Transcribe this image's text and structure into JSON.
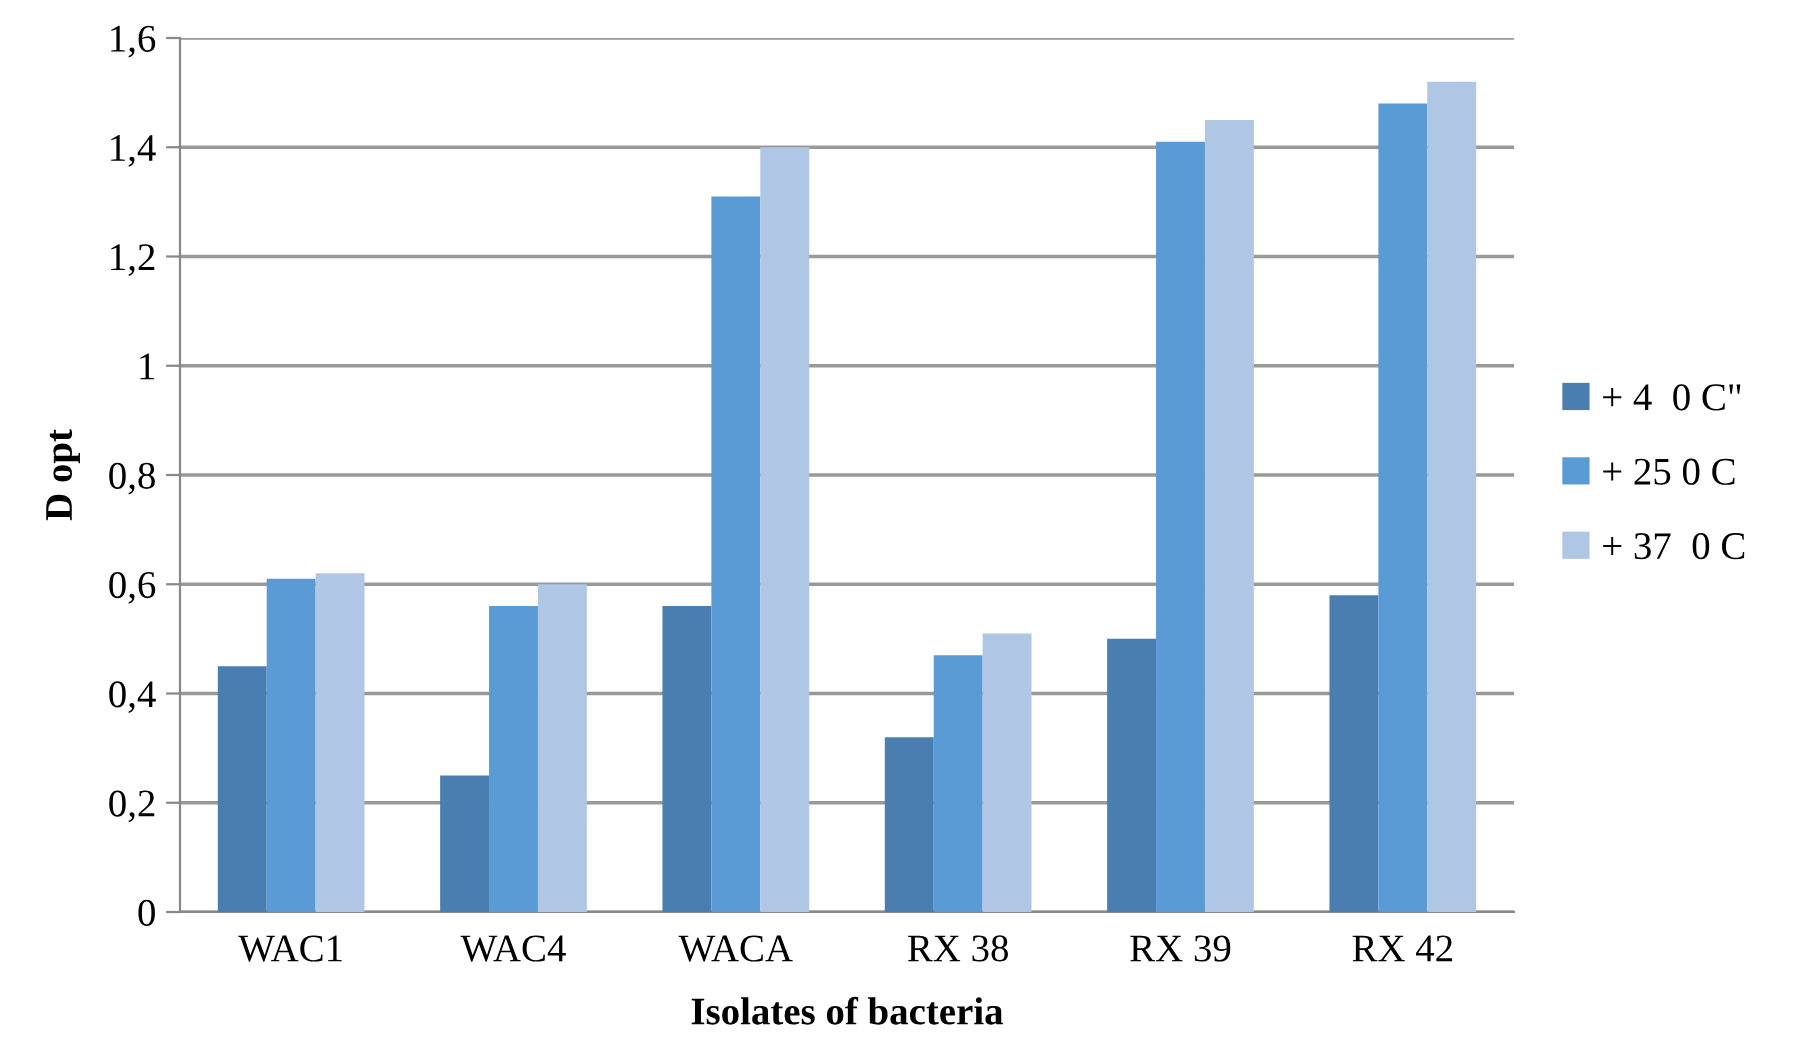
{
  "chart_data": {
    "type": "bar",
    "xlabel": "Isolates of bacteria",
    "ylabel": "D opt",
    "categories": [
      "WAC1",
      "WAC4",
      "WACA",
      "RX 38",
      "RX 39",
      "RX 42"
    ],
    "series": [
      {
        "name": "+ 4  0 C\"",
        "color": "#4a7eb0",
        "values": [
          0.45,
          0.25,
          0.56,
          0.32,
          0.5,
          0.58
        ]
      },
      {
        "name": "+ 25 0 C",
        "color": "#5b9bd5",
        "values": [
          0.61,
          0.56,
          1.31,
          0.47,
          1.41,
          1.48
        ]
      },
      {
        "name": "+ 37  0 C",
        "color": "#afc7e5",
        "values": [
          0.62,
          0.6,
          1.4,
          0.51,
          1.45,
          1.52
        ]
      }
    ],
    "ylim": [
      0,
      1.6
    ],
    "yticks": [
      {
        "value": 0,
        "label": "0"
      },
      {
        "value": 0.2,
        "label": "0,2"
      },
      {
        "value": 0.4,
        "label": "0,4"
      },
      {
        "value": 0.6,
        "label": "0,6"
      },
      {
        "value": 0.8,
        "label": "0,8"
      },
      {
        "value": 1,
        "label": "1"
      },
      {
        "value": 1.2,
        "label": "1,2"
      },
      {
        "value": 1.4,
        "label": "1,4"
      },
      {
        "value": 1.6,
        "label": "1,6"
      }
    ],
    "grid": "y",
    "legend": "right"
  }
}
